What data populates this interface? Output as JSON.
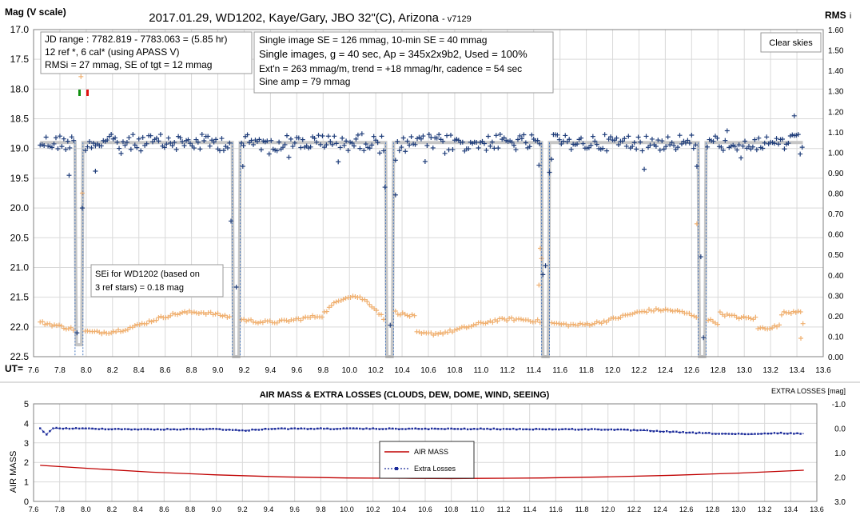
{
  "colors": {
    "mag": "#1f3d7a",
    "rms": "#f0b070",
    "model": "#c0c0c0",
    "airmass": "#c00000",
    "losses": "#1a2a9a",
    "grid": "#d9d9d9"
  },
  "chart_data": [
    {
      "type": "scatter",
      "title": "2017.01.29,  WD1202, Kaye/Gary, JBO 32\"(C), Arizona",
      "version_tag": "- v7129",
      "ylabel": "Mag (V scale)",
      "ylabel_right": "RMS",
      "ylabel_right_suffix": "i",
      "xlabel": "UT=",
      "xlim": [
        7.6,
        13.6
      ],
      "ylim": [
        22.5,
        17.0
      ],
      "ylim_right": [
        0.0,
        1.6
      ],
      "x_ticks": [
        "7.6",
        "7.8",
        "8.0",
        "8.2",
        "8.4",
        "8.6",
        "8.8",
        "9.0",
        "9.2",
        "9.4",
        "9.6",
        "9.8",
        "10.0",
        "10.2",
        "10.4",
        "10.6",
        "10.8",
        "11.0",
        "11.2",
        "11.4",
        "11.6",
        "11.8",
        "12.0",
        "12.2",
        "12.4",
        "12.6",
        "12.8",
        "13.0",
        "13.2",
        "13.4",
        "13.6"
      ],
      "y_ticks": [
        "17.0",
        "17.5",
        "18.0",
        "18.5",
        "19.0",
        "19.5",
        "20.0",
        "20.5",
        "21.0",
        "21.5",
        "22.0",
        "22.5"
      ],
      "y_ticks_right": [
        "1.60",
        "1.50",
        "1.40",
        "1.30",
        "1.20",
        "1.10",
        "1.00",
        "0.90",
        "0.80",
        "0.70",
        "0.60",
        "0.50",
        "0.40",
        "0.30",
        "0.20",
        "0.10",
        "0.00"
      ],
      "grid": true,
      "baseline_mag": 18.9,
      "info_box_1": [
        "JD range  : 7782.819 - 7783.063  = (5.85 hr)",
        "12 ref *, 6 cal* (using APASS  V)",
        "RMSi = 27 mmag, SE of tgt = 12 mmag"
      ],
      "info_box_2": [
        "Single image SE = 126 mmag, 10-min SE = 40  mmag",
        "Single images, g = 40 sec, Ap = 345x2x9b2, Used = 100%",
        "Ext'n = 263  mmag/m, trend = +18 mmag/hr, cadence = 54 sec",
        "Sine amp = 79 mmag"
      ],
      "weather_note": "Clear skies",
      "sei_note": [
        "SEi for WD1202 (based on",
        "3 ref stars) = 0.18 mag"
      ],
      "transits": [
        {
          "center": 7.945,
          "depth": 22.3
        },
        {
          "center": 9.14,
          "depth": 22.5
        },
        {
          "center": 10.305,
          "depth": 22.5
        },
        {
          "center": 11.49,
          "depth": 22.5
        },
        {
          "center": 12.68,
          "depth": 22.5
        }
      ],
      "mag_outliers": [
        {
          "x": 7.87,
          "y": 19.45
        },
        {
          "x": 7.93,
          "y": 22.1
        },
        {
          "x": 7.97,
          "y": 20.0
        },
        {
          "x": 8.07,
          "y": 19.38
        },
        {
          "x": 9.1,
          "y": 20.22
        },
        {
          "x": 9.14,
          "y": 21.33
        },
        {
          "x": 9.19,
          "y": 19.3
        },
        {
          "x": 10.27,
          "y": 19.65
        },
        {
          "x": 10.31,
          "y": 21.97
        },
        {
          "x": 10.35,
          "y": 19.78
        },
        {
          "x": 11.44,
          "y": 19.28
        },
        {
          "x": 11.47,
          "y": 21.12
        },
        {
          "x": 11.49,
          "y": 20.97
        },
        {
          "x": 11.52,
          "y": 19.4
        },
        {
          "x": 12.64,
          "y": 19.3
        },
        {
          "x": 12.67,
          "y": 20.82
        },
        {
          "x": 12.69,
          "y": 22.18
        },
        {
          "x": 13.38,
          "y": 18.45
        }
      ],
      "rms_outliers": [
        {
          "x": 7.96,
          "y": 1.37
        },
        {
          "x": 7.97,
          "y": 0.8
        },
        {
          "x": 11.45,
          "y": 0.53
        },
        {
          "x": 11.46,
          "y": 0.48
        },
        {
          "x": 11.44,
          "y": 0.35
        },
        {
          "x": 12.64,
          "y": 0.65
        },
        {
          "x": 13.43,
          "y": 0.09
        }
      ]
    },
    {
      "type": "line",
      "title": "AIR MASS & EXTRA LOSSES (CLOUDS, DEW, DOME, WIND, SEEING)",
      "ylabel": "AIR MASS",
      "ylabel_right": "EXTRA LOSSES [mag]",
      "xlim": [
        7.6,
        13.6
      ],
      "ylim": [
        0,
        5
      ],
      "ylim_right": [
        3.0,
        -1.0
      ],
      "x_ticks": [
        "7.6",
        "7.8",
        "8.0",
        "8.2",
        "8.4",
        "8.6",
        "8.8",
        "9.0",
        "9.2",
        "9.4",
        "9.6",
        "9.8",
        "10.0",
        "10.2",
        "10.4",
        "10.6",
        "10.8",
        "11.0",
        "11.2",
        "11.4",
        "11.6",
        "11.8",
        "12.0",
        "12.2",
        "12.4",
        "12.6",
        "12.8",
        "13.0",
        "13.2",
        "13.4",
        "13.6"
      ],
      "y_ticks": [
        "0",
        "1",
        "2",
        "3",
        "4",
        "5"
      ],
      "y_ticks_right": [
        "3.0",
        "2.0",
        "1.0",
        "0.0",
        "-1.0"
      ],
      "legend": [
        "AIR MASS",
        "Extra Losses"
      ],
      "series": [
        {
          "name": "AIR MASS",
          "x": [
            7.65,
            8.0,
            8.5,
            9.0,
            9.5,
            10.0,
            10.5,
            10.8,
            11.0,
            11.5,
            12.0,
            12.5,
            13.0,
            13.5
          ],
          "values": [
            1.85,
            1.7,
            1.5,
            1.36,
            1.26,
            1.2,
            1.18,
            1.17,
            1.18,
            1.2,
            1.26,
            1.34,
            1.45,
            1.6
          ]
        },
        {
          "name": "Extra Losses",
          "x": [
            7.65,
            7.7,
            7.75,
            8.5,
            9.0,
            9.2,
            9.4,
            10.0,
            11.0,
            12.0,
            12.3,
            12.6,
            12.9,
            13.1,
            13.3,
            13.5
          ],
          "values": [
            0.0,
            0.25,
            0.0,
            0.05,
            0.03,
            0.1,
            0.02,
            0.02,
            0.03,
            0.05,
            0.1,
            0.18,
            0.23,
            0.25,
            0.2,
            0.22
          ]
        }
      ]
    }
  ]
}
